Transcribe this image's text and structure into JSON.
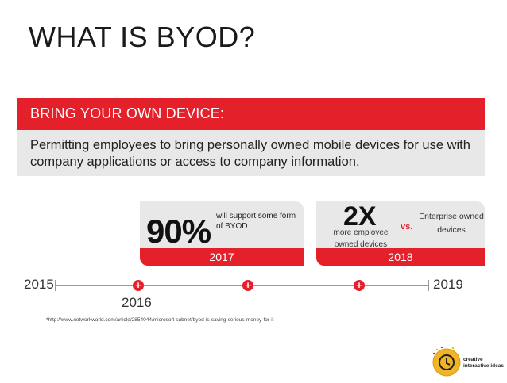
{
  "title": "WHAT IS BYOD?",
  "banner": {
    "label": "BRING YOUR OWN DEVICE:"
  },
  "definition": "Permitting employees to bring personally owned mobile devices for use with company applications or access to company information.",
  "stat_2017": {
    "value": "90%",
    "text": "will support some form of BYOD",
    "year": "2017"
  },
  "stat_2018": {
    "value": "2X",
    "text": "more employee owned devices",
    "vs": "vs.",
    "compare": "Enterprise owned devices",
    "year": "2018"
  },
  "timeline": {
    "start": "2015",
    "mid": "2016",
    "end": "2019",
    "marker_symbol": "+"
  },
  "footnote": "*http://www.networkworld.com/article/2854044/microsoft-subnet/byod-is-saving-serious-money-for-it",
  "logo": {
    "line1": "creative",
    "line2": "interactive ideas"
  },
  "colors": {
    "accent": "#e4202b",
    "panel": "#e8e8e8"
  }
}
